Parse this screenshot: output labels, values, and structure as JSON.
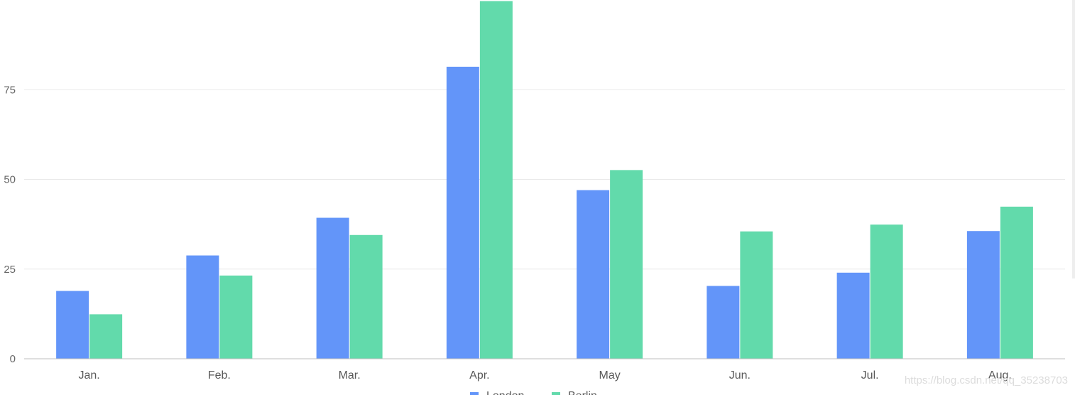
{
  "chart_data": {
    "type": "bar",
    "categories": [
      "Jan.",
      "Feb.",
      "Mar.",
      "Apr.",
      "May",
      "Jun.",
      "Jul.",
      "Aug."
    ],
    "series": [
      {
        "name": "London",
        "values": [
          18.9,
          28.8,
          39.3,
          81.4,
          47,
          20.3,
          24,
          35.6
        ],
        "color": "#6395f9"
      },
      {
        "name": "Berlin",
        "values": [
          12.4,
          23.2,
          34.5,
          99.7,
          52.6,
          35.5,
          37.4,
          42.4
        ],
        "color": "#62daab"
      }
    ],
    "yticks": [
      0,
      25,
      50,
      75
    ],
    "ylim": [
      0,
      100
    ],
    "grid": true,
    "legend": "bottom-center"
  },
  "watermark": "https://blog.csdn.net/qq_35238703"
}
